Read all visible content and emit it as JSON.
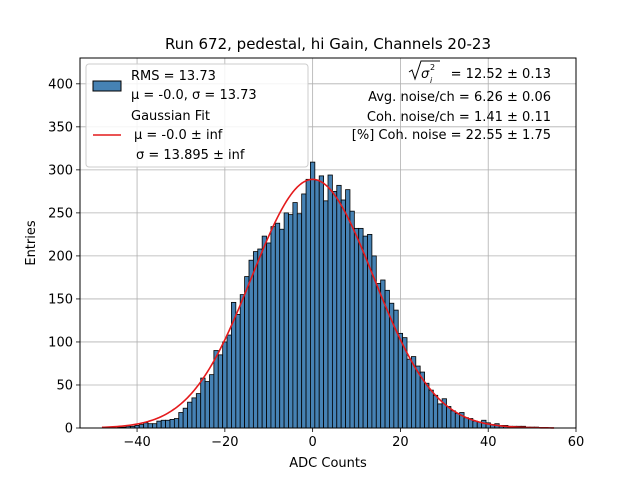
{
  "chart_data": {
    "type": "bar",
    "title": "Run 672, pedestal, hi Gain, Channels 20-23",
    "xlabel": "ADC Counts",
    "ylabel": "Entries",
    "xlim": [
      -53,
      60
    ],
    "ylim": [
      0,
      430
    ],
    "xticks": [
      -40,
      -20,
      0,
      20,
      40,
      60
    ],
    "yticks": [
      0,
      50,
      100,
      150,
      200,
      250,
      300,
      350,
      400
    ],
    "grid": true,
    "bin_width": 1,
    "bins": [
      [
        -44,
        1
      ],
      [
        -43,
        1
      ],
      [
        -42,
        2
      ],
      [
        -41,
        2
      ],
      [
        -40,
        3
      ],
      [
        -39,
        4
      ],
      [
        -38,
        6
      ],
      [
        -37,
        5
      ],
      [
        -36,
        5
      ],
      [
        -35,
        8
      ],
      [
        -34,
        9
      ],
      [
        -33,
        9
      ],
      [
        -32,
        10
      ],
      [
        -31,
        11
      ],
      [
        -30,
        18
      ],
      [
        -29,
        23
      ],
      [
        -28,
        30
      ],
      [
        -27,
        35
      ],
      [
        -26,
        40
      ],
      [
        -25,
        58
      ],
      [
        -24,
        54
      ],
      [
        -23,
        62
      ],
      [
        -22,
        90
      ],
      [
        -21,
        85
      ],
      [
        -20,
        100
      ],
      [
        -19,
        108
      ],
      [
        -18,
        146
      ],
      [
        -17,
        132
      ],
      [
        -16,
        155
      ],
      [
        -15,
        176
      ],
      [
        -14,
        195
      ],
      [
        -13,
        205
      ],
      [
        -12,
        208
      ],
      [
        -11,
        223
      ],
      [
        -10,
        215
      ],
      [
        -9,
        234
      ],
      [
        -8,
        238
      ],
      [
        -7,
        231
      ],
      [
        -6,
        250
      ],
      [
        -5,
        248
      ],
      [
        -4,
        262
      ],
      [
        -3,
        249
      ],
      [
        -2,
        272
      ],
      [
        -1,
        289
      ],
      [
        0,
        309
      ],
      [
        1,
        288
      ],
      [
        2,
        293
      ],
      [
        3,
        264
      ],
      [
        4,
        294
      ],
      [
        5,
        275
      ],
      [
        6,
        282
      ],
      [
        7,
        265
      ],
      [
        8,
        277
      ],
      [
        9,
        252
      ],
      [
        10,
        232
      ],
      [
        11,
        232
      ],
      [
        12,
        223
      ],
      [
        13,
        225
      ],
      [
        14,
        200
      ],
      [
        15,
        168
      ],
      [
        16,
        172
      ],
      [
        17,
        160
      ],
      [
        18,
        145
      ],
      [
        19,
        137
      ],
      [
        20,
        110
      ],
      [
        21,
        105
      ],
      [
        22,
        80
      ],
      [
        23,
        83
      ],
      [
        24,
        72
      ],
      [
        25,
        65
      ],
      [
        26,
        52
      ],
      [
        27,
        44
      ],
      [
        28,
        38
      ],
      [
        29,
        28
      ],
      [
        30,
        34
      ],
      [
        31,
        25
      ],
      [
        32,
        20
      ],
      [
        33,
        17
      ],
      [
        34,
        18
      ],
      [
        35,
        12
      ],
      [
        36,
        11
      ],
      [
        37,
        8
      ],
      [
        38,
        7
      ],
      [
        39,
        9
      ],
      [
        40,
        6
      ],
      [
        41,
        4
      ],
      [
        42,
        5
      ],
      [
        43,
        3
      ],
      [
        44,
        3
      ],
      [
        45,
        2
      ],
      [
        46,
        2
      ],
      [
        47,
        2
      ],
      [
        48,
        2
      ],
      [
        49,
        1
      ],
      [
        50,
        1
      ],
      [
        51,
        1
      ]
    ],
    "series": [
      {
        "name": "RMS = 13.73",
        "line2": "μ = -0.0, σ = 13.73",
        "kind": "histogram",
        "color": "#4682b4",
        "edgecolor": "#000000"
      },
      {
        "name": "Gaussian Fit",
        "line2": "μ = -0.0 ± inf",
        "line3": "σ = 13.895 ± inf",
        "kind": "line",
        "color": "#e41a1c",
        "mu": 0.0,
        "sigma": 13.895,
        "amplitude": 289,
        "range": [
          -48,
          55
        ]
      }
    ],
    "legend_position": "top-left",
    "annotations": [
      {
        "sqrt_label": "σ",
        "sub": "i",
        "sup": "2",
        "rest": " = 12.52 ± 0.13"
      },
      {
        "text": "Avg. noise/ch = 6.26 ± 0.06"
      },
      {
        "text": "Coh. noise/ch = 1.41 ± 0.11"
      },
      {
        "text": "[%] Coh. noise = 22.55 ± 1.75"
      }
    ]
  }
}
